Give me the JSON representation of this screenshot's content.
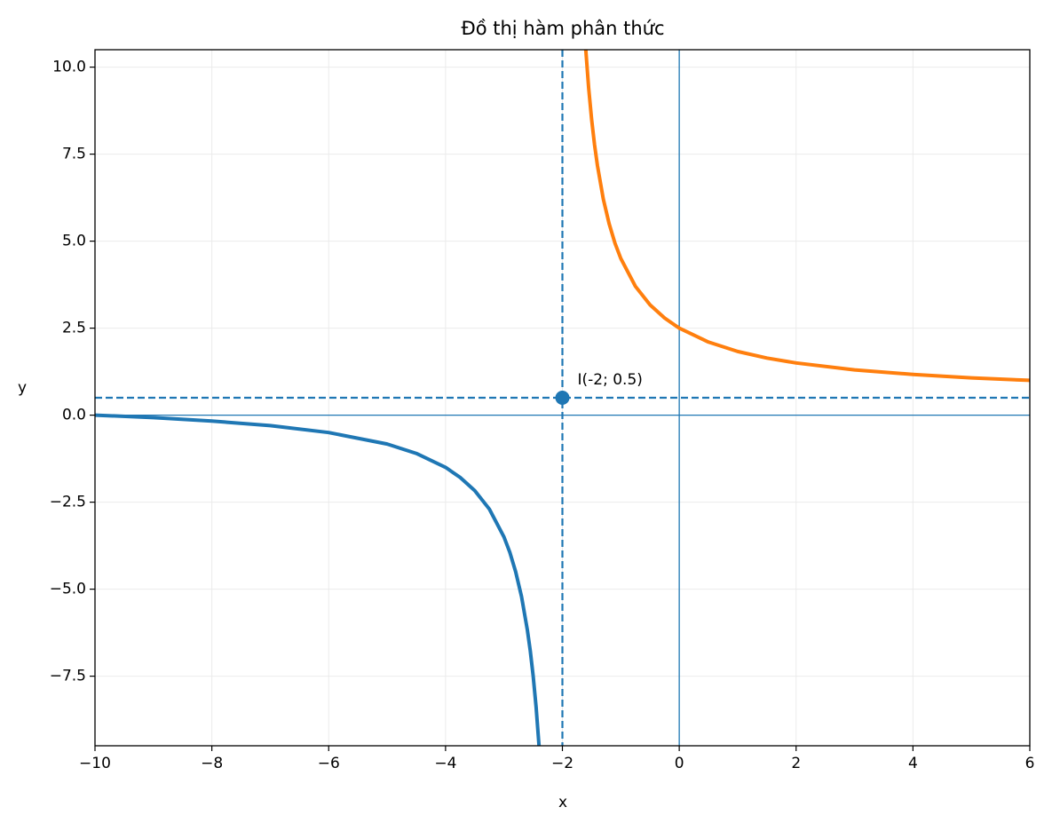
{
  "chart_data": {
    "type": "line",
    "title": "Đồ thị hàm phân thức",
    "xlabel": "x",
    "ylabel": "y",
    "xlim": [
      -10,
      6
    ],
    "ylim": [
      -9.5,
      10.5
    ],
    "xticks": [
      {
        "value": -10,
        "label": "−10"
      },
      {
        "value": -8,
        "label": "−8"
      },
      {
        "value": -6,
        "label": "−6"
      },
      {
        "value": -4,
        "label": "−4"
      },
      {
        "value": -2,
        "label": "−2"
      },
      0,
      2,
      4,
      6
    ],
    "yticks": [
      {
        "value": -7.5,
        "label": "−7.5"
      },
      {
        "value": -5,
        "label": "−5.0"
      },
      {
        "value": -2.5,
        "label": "−2.5"
      },
      {
        "value": 0,
        "label": "0.0"
      },
      {
        "value": 2.5,
        "label": "2.5"
      },
      {
        "value": 5,
        "label": "5.0"
      },
      {
        "value": 7.5,
        "label": "7.5"
      },
      {
        "value": 10,
        "label": "10.0"
      }
    ],
    "grid": true,
    "axis_color": "#1f77b4",
    "asymptotes": {
      "x": -2,
      "y": 0.5
    },
    "point": {
      "x": -2,
      "y": 0.5,
      "label": "I(-2; 0.5)"
    },
    "series": [
      {
        "color": "#1f77b4",
        "x": [
          -10,
          -9,
          -8,
          -7,
          -6,
          -5,
          -4.5,
          -4,
          -3.75,
          -3.5,
          -3.25,
          -3,
          -2.9,
          -2.8,
          -2.7,
          -2.6,
          -2.55,
          -2.5,
          -2.45,
          -2.4
        ],
        "values": [
          0,
          -0.07,
          -0.17,
          -0.3,
          -0.5,
          -0.83,
          -1.1,
          -1.5,
          -1.79,
          -2.17,
          -2.7,
          -3.5,
          -3.94,
          -4.5,
          -5.21,
          -6.17,
          -6.77,
          -7.5,
          -8.39,
          -9.5
        ]
      },
      {
        "color": "#ff7f0e",
        "x": [
          -1.6,
          -1.55,
          -1.5,
          -1.45,
          -1.4,
          -1.3,
          -1.2,
          -1.1,
          -1,
          -0.75,
          -0.5,
          -0.25,
          0,
          0.5,
          1,
          1.5,
          2,
          3,
          4,
          5,
          6
        ],
        "values": [
          10.5,
          9.39,
          8.5,
          7.77,
          7.17,
          6.21,
          5.5,
          4.94,
          4.5,
          3.7,
          3.17,
          2.79,
          2.5,
          2.1,
          1.83,
          1.64,
          1.5,
          1.3,
          1.17,
          1.07,
          1.0
        ]
      }
    ]
  }
}
